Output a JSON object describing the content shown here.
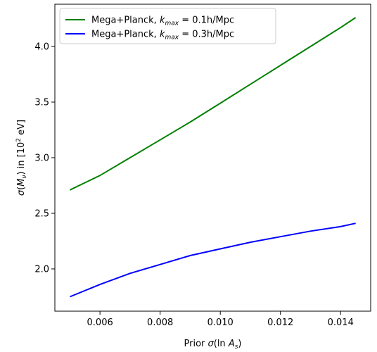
{
  "chart_data": {
    "type": "line",
    "xlabel": {
      "prefix": "Prior ",
      "sigma": "σ",
      "open": "(ln ",
      "var": "A",
      "sub": "s",
      "close": ")"
    },
    "ylabel": {
      "sigma": "σ",
      "open": "(",
      "var": "M",
      "sub": "ν",
      "close": ")",
      "middle": " in [10",
      "sup": "2",
      "end": " eV]"
    },
    "xlim": [
      0.0045,
      0.015
    ],
    "ylim": [
      1.62,
      4.38
    ],
    "xticks": [
      0.006,
      0.008,
      0.01,
      0.012,
      0.014
    ],
    "xtick_labels": [
      "0.006",
      "0.008",
      "0.010",
      "0.012",
      "0.014"
    ],
    "yticks": [
      2.0,
      2.5,
      3.0,
      3.5,
      4.0
    ],
    "ytick_labels": [
      "2.0",
      "2.5",
      "3.0",
      "3.5",
      "4.0"
    ],
    "grid": false,
    "legend_position": "top-left",
    "series": [
      {
        "name": "Mega+Planck, k_max = 0.1h/Mpc",
        "legend_prefix": "Mega+Planck, ",
        "legend_k": "k",
        "legend_sub": "max",
        "legend_suffix": " = 0.1h/Mpc",
        "color": "#008000",
        "x": [
          0.005,
          0.006,
          0.007,
          0.008,
          0.009,
          0.01,
          0.011,
          0.012,
          0.013,
          0.014,
          0.0145
        ],
        "y": [
          2.71,
          2.84,
          3.0,
          3.16,
          3.32,
          3.49,
          3.66,
          3.83,
          4.0,
          4.17,
          4.26
        ]
      },
      {
        "name": "Mega+Planck, k_max = 0.3h/Mpc",
        "legend_prefix": "Mega+Planck, ",
        "legend_k": "k",
        "legend_sub": "max",
        "legend_suffix": " = 0.3h/Mpc",
        "color": "#0000ff",
        "x": [
          0.005,
          0.006,
          0.007,
          0.008,
          0.009,
          0.01,
          0.011,
          0.012,
          0.013,
          0.014,
          0.0145
        ],
        "y": [
          1.75,
          1.86,
          1.96,
          2.04,
          2.12,
          2.18,
          2.24,
          2.29,
          2.34,
          2.38,
          2.41
        ]
      }
    ]
  }
}
